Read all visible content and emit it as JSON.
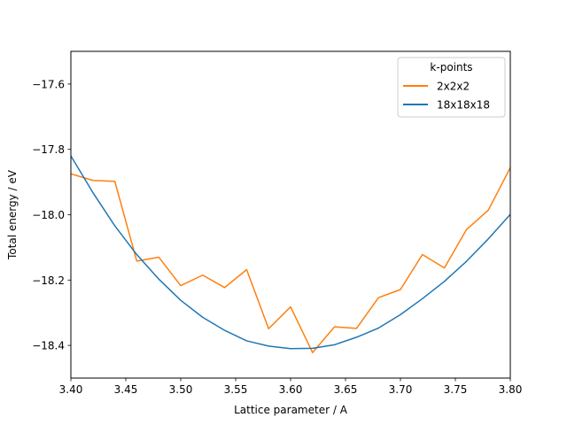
{
  "chart_data": {
    "type": "line",
    "title": "",
    "xlabel": "Lattice parameter / A",
    "ylabel": "Total energy / eV",
    "xlim": [
      3.4,
      3.8
    ],
    "ylim": [
      -18.5,
      -17.5
    ],
    "x_ticks": [
      3.4,
      3.45,
      3.5,
      3.55,
      3.6,
      3.65,
      3.7,
      3.75,
      3.8
    ],
    "x_tick_labels": [
      "3.40",
      "3.45",
      "3.50",
      "3.55",
      "3.60",
      "3.65",
      "3.70",
      "3.75",
      "3.80"
    ],
    "y_ticks": [
      -18.4,
      -18.2,
      -18.0,
      -17.8,
      -17.6
    ],
    "y_tick_labels": [
      "−18.4",
      "−18.2",
      "−18.0",
      "−17.8",
      "−17.6"
    ],
    "grid": false,
    "legend": {
      "title": "k-points",
      "position": "upper-right"
    },
    "series": [
      {
        "name": "2x2x2",
        "color": "#ff7f0e",
        "x": [
          3.4,
          3.42,
          3.44,
          3.46,
          3.48,
          3.5,
          3.52,
          3.54,
          3.56,
          3.58,
          3.6,
          3.62,
          3.64,
          3.66,
          3.68,
          3.7,
          3.72,
          3.74,
          3.76,
          3.78,
          3.8
        ],
        "y": [
          -17.875,
          -17.895,
          -17.898,
          -18.142,
          -18.13,
          -18.217,
          -18.185,
          -18.223,
          -18.168,
          -18.349,
          -18.282,
          -18.422,
          -18.343,
          -18.348,
          -18.254,
          -18.229,
          -18.122,
          -18.163,
          -18.046,
          -17.986,
          -17.856
        ]
      },
      {
        "name": "18x18x18",
        "color": "#1f77b4",
        "x": [
          3.4,
          3.42,
          3.44,
          3.46,
          3.48,
          3.5,
          3.52,
          3.54,
          3.56,
          3.58,
          3.6,
          3.62,
          3.64,
          3.66,
          3.68,
          3.7,
          3.72,
          3.74,
          3.76,
          3.78,
          3.8
        ],
        "y": [
          -17.82,
          -17.932,
          -18.034,
          -18.122,
          -18.197,
          -18.262,
          -18.314,
          -18.354,
          -18.386,
          -18.402,
          -18.41,
          -18.409,
          -18.398,
          -18.375,
          -18.347,
          -18.306,
          -18.257,
          -18.204,
          -18.143,
          -18.074,
          -17.999
        ]
      }
    ]
  }
}
